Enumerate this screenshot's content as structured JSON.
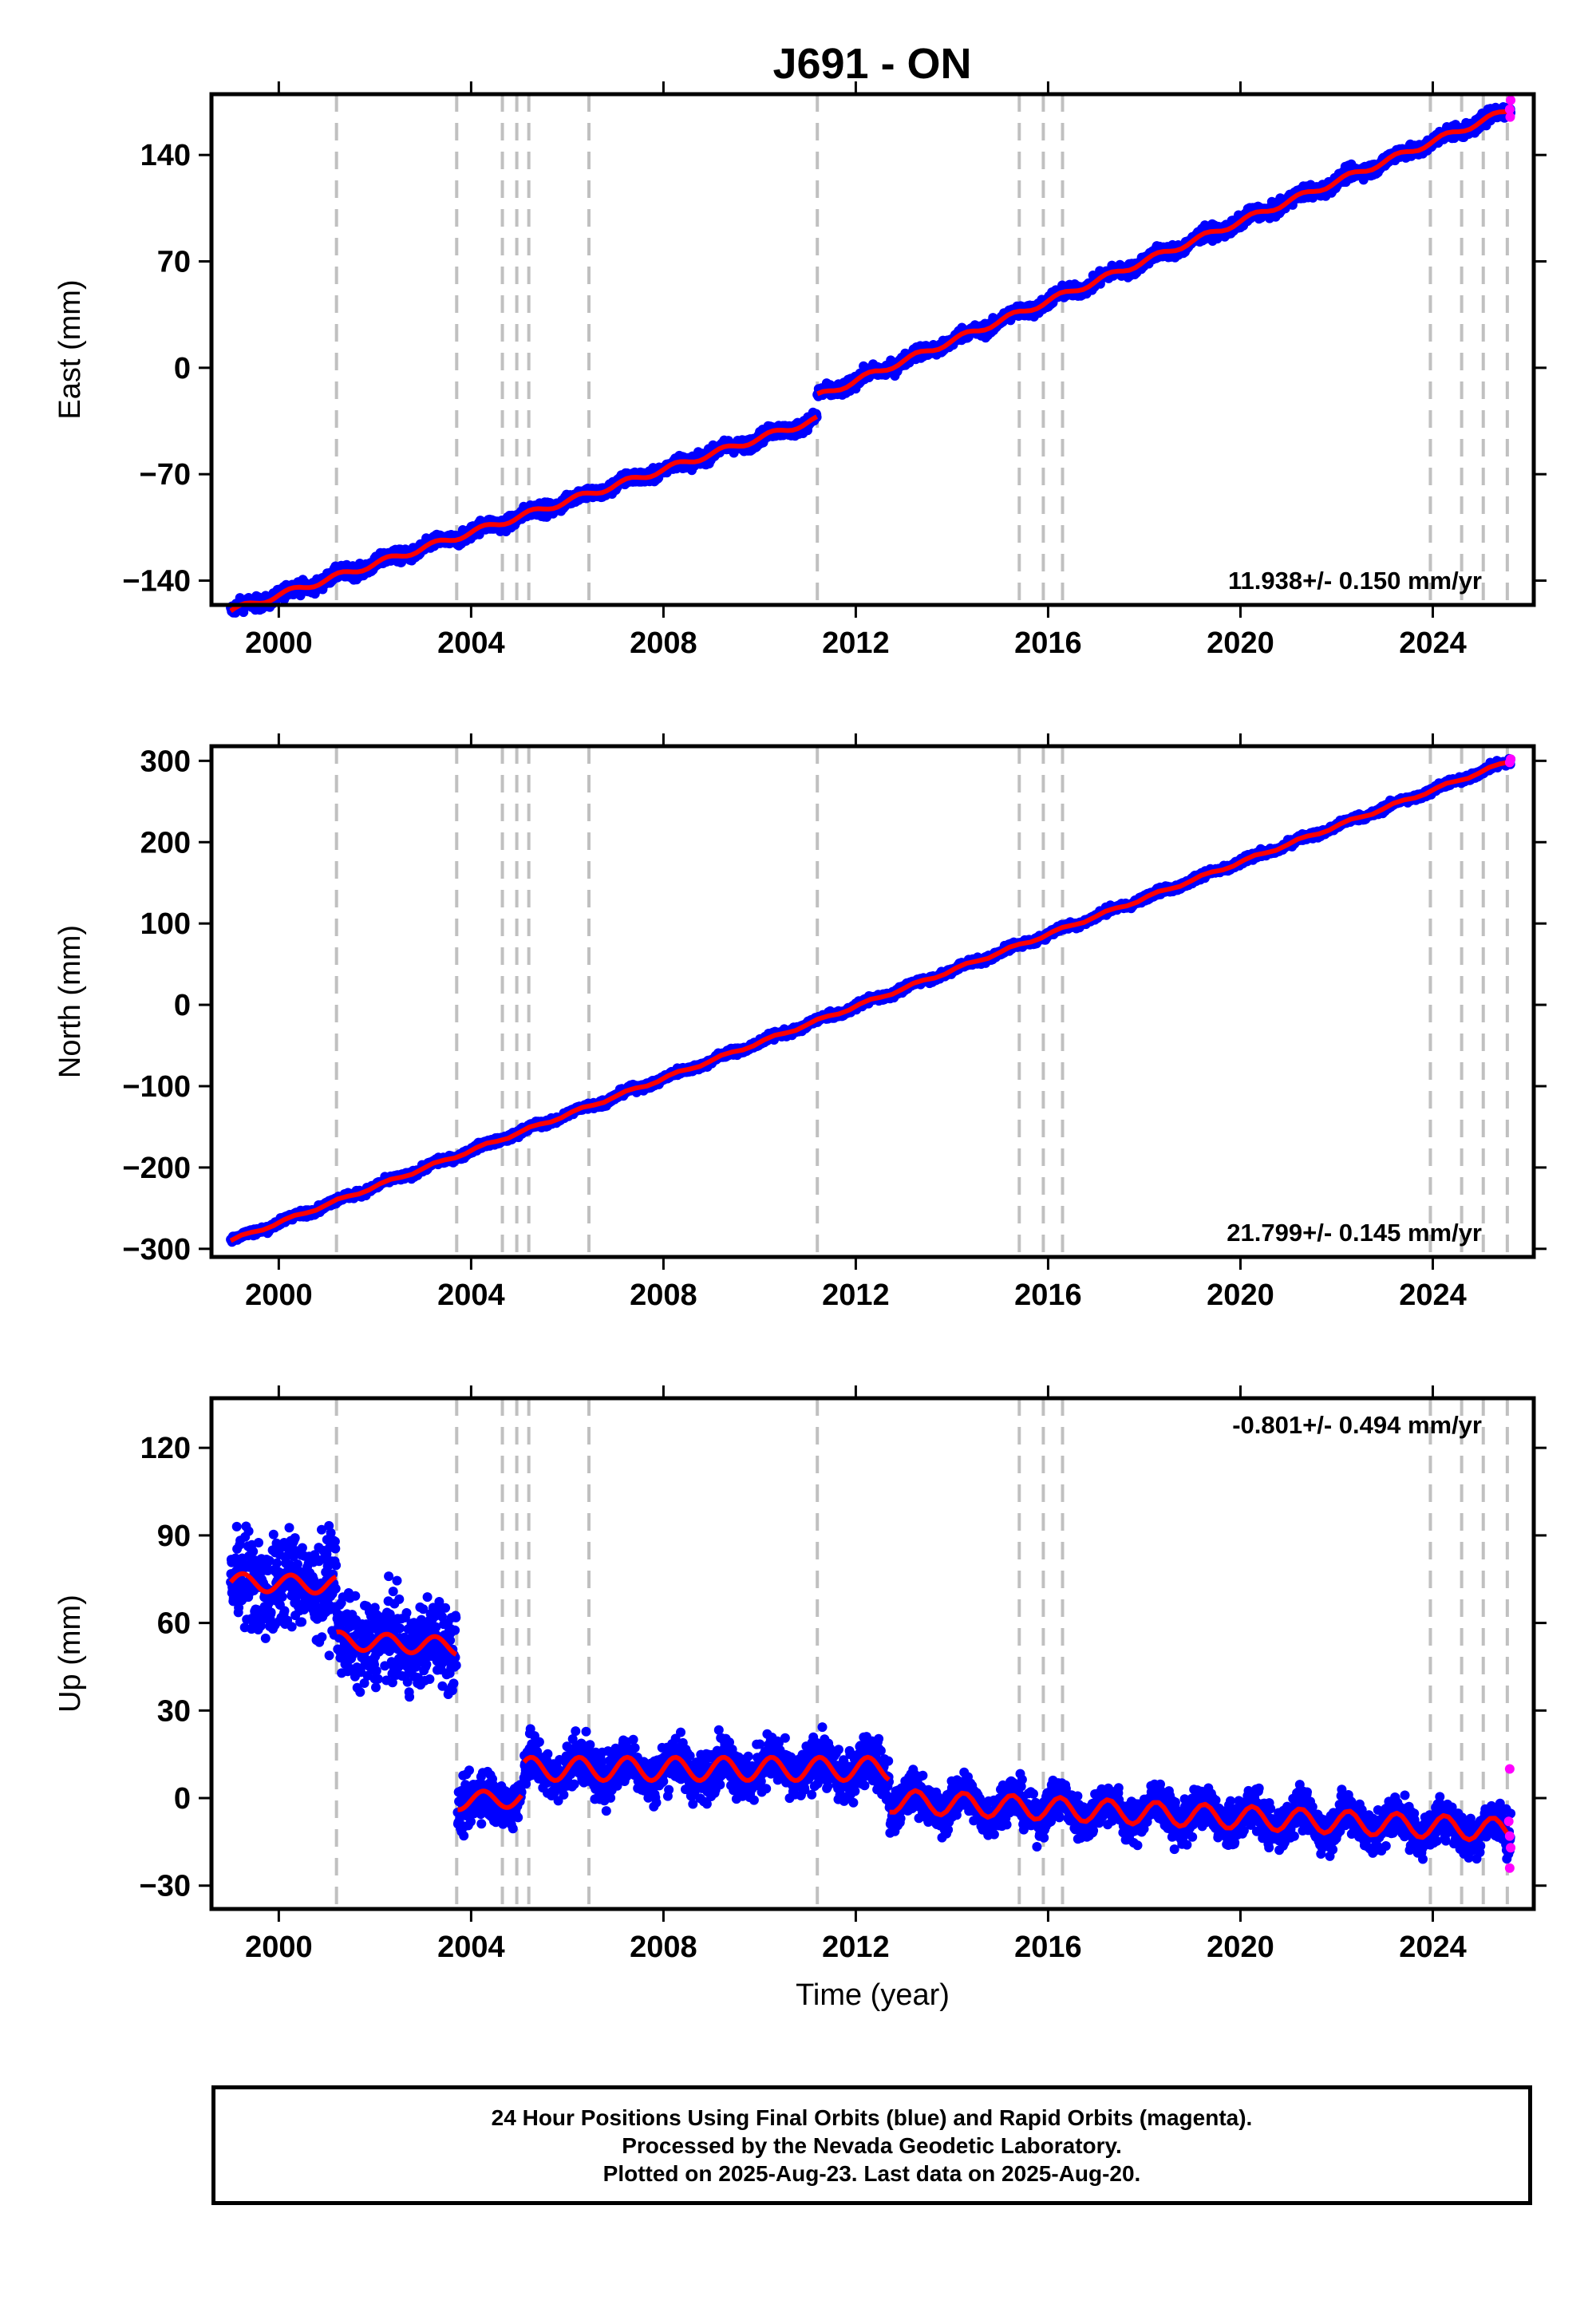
{
  "title": "J691 - ON",
  "colors": {
    "final_orbits": "#0000ff",
    "rapid_orbits": "#ff00ff",
    "model": "#ff0000",
    "event_lines": "#c0c0c0",
    "frame": "#000000"
  },
  "footer": {
    "line1": "24 Hour Positions Using Final Orbits (blue) and Rapid Orbits (magenta).",
    "line2": "Processed by the Nevada Geodetic Laboratory.",
    "line3": "Plotted on 2025-Aug-23. Last data on 2025-Aug-20."
  },
  "chart_data": [
    {
      "type": "scatter",
      "component": "East",
      "ylabel": "East (mm)",
      "xlabel": "",
      "xlim": [
        1998.6,
        2026.1
      ],
      "ylim": [
        -156,
        180
      ],
      "xticks": [
        2000,
        2004,
        2008,
        2012,
        2016,
        2020,
        2024
      ],
      "yticks": [
        -140,
        -70,
        0,
        70,
        140
      ],
      "rate_label": "11.938+/- 0.150 mm/yr",
      "rate_position": "bottom-right",
      "events": [
        2001.2,
        2003.7,
        2004.65,
        2004.95,
        2005.2,
        2006.45,
        2011.2,
        2015.4,
        2015.9,
        2016.3,
        2023.95,
        2024.6,
        2025.05,
        2025.55
      ],
      "model_segments": [
        {
          "x0": 1999.0,
          "x1": 2011.19,
          "y0": -160,
          "y1": -34,
          "amp": 2,
          "noise": 3
        },
        {
          "x0": 2011.2,
          "x1": 2025.62,
          "y0": -19,
          "y1": 170,
          "amp": 2,
          "noise": 3
        }
      ],
      "rapid_points": [
        {
          "x": 2025.6,
          "y": 170
        },
        {
          "x": 2025.62,
          "y": 176
        },
        {
          "x": 2025.61,
          "y": 165
        }
      ]
    },
    {
      "type": "scatter",
      "component": "North",
      "ylabel": "North (mm)",
      "xlabel": "",
      "xlim": [
        1998.6,
        2026.1
      ],
      "ylim": [
        -310,
        318
      ],
      "xticks": [
        2000,
        2004,
        2008,
        2012,
        2016,
        2020,
        2024
      ],
      "yticks": [
        -300,
        -200,
        -100,
        0,
        100,
        200,
        300
      ],
      "rate_label": "21.799+/- 0.145 mm/yr",
      "rate_position": "bottom-right",
      "events": [
        2001.2,
        2003.7,
        2004.65,
        2004.95,
        2005.2,
        2006.45,
        2011.2,
        2015.4,
        2015.9,
        2016.3,
        2023.95,
        2024.6,
        2025.05,
        2025.55
      ],
      "model_segments": [
        {
          "x0": 1999.0,
          "x1": 2025.62,
          "y0": -290,
          "y1": 300,
          "amp": 2,
          "noise": 3
        }
      ],
      "rapid_points": [
        {
          "x": 2025.6,
          "y": 298
        },
        {
          "x": 2025.62,
          "y": 302
        }
      ]
    },
    {
      "type": "scatter",
      "component": "Up",
      "ylabel": "Up (mm)",
      "xlabel": "Time (year)",
      "xlim": [
        1998.6,
        2026.1
      ],
      "ylim": [
        -38,
        137
      ],
      "xticks": [
        2000,
        2004,
        2008,
        2012,
        2016,
        2020,
        2024
      ],
      "yticks": [
        -30,
        0,
        30,
        60,
        90,
        120
      ],
      "rate_label": "-0.801+/- 0.494 mm/yr",
      "rate_position": "top-right",
      "events": [
        2001.2,
        2003.7,
        2004.65,
        2004.95,
        2005.2,
        2006.45,
        2011.2,
        2015.4,
        2015.9,
        2016.3,
        2023.95,
        2024.6,
        2025.05,
        2025.55
      ],
      "model_segments": [
        {
          "x0": 1999.0,
          "x1": 2001.19,
          "y0": 74,
          "y1": 73,
          "amp": 3,
          "noise": 12
        },
        {
          "x0": 2001.2,
          "x1": 2003.69,
          "y0": 54,
          "y1": 52,
          "amp": 3,
          "noise": 10
        },
        {
          "x0": 2003.72,
          "x1": 2005.05,
          "y0": -1,
          "y1": 0,
          "amp": 3,
          "noise": 6
        },
        {
          "x0": 2005.1,
          "x1": 2012.69,
          "y0": 10,
          "y1": 10,
          "amp": 4,
          "noise": 6
        },
        {
          "x0": 2012.7,
          "x1": 2025.62,
          "y0": -1,
          "y1": -11,
          "amp": 4,
          "noise": 5
        }
      ],
      "rapid_points": [
        {
          "x": 2025.6,
          "y": 10
        },
        {
          "x": 2025.58,
          "y": -8
        },
        {
          "x": 2025.6,
          "y": -13
        },
        {
          "x": 2025.62,
          "y": -17
        },
        {
          "x": 2025.6,
          "y": -24
        }
      ]
    }
  ]
}
